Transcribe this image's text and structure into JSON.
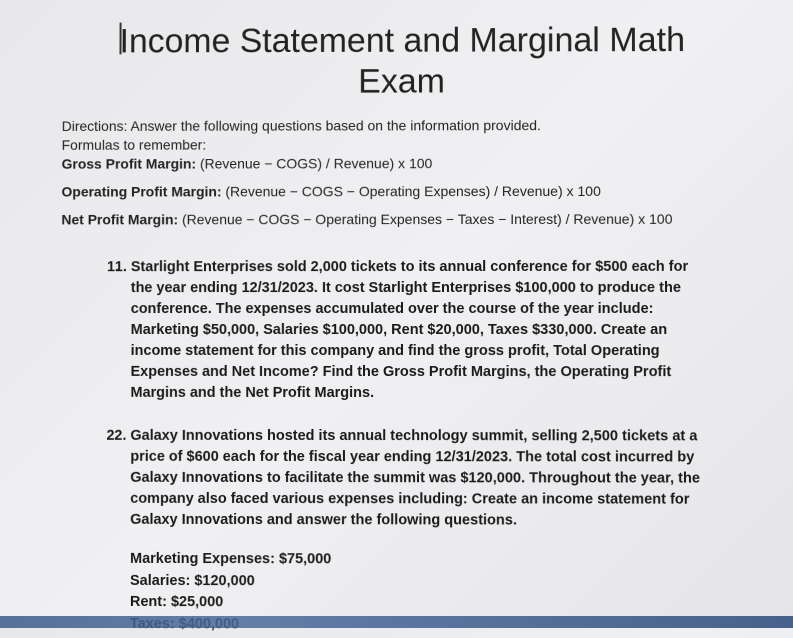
{
  "title_line1": "Income Statement and Marginal Math",
  "title_line2": "Exam",
  "directions": "Directions: Answer the following questions based on the information provided.",
  "formulas_label": "Formulas to remember:",
  "formula1_label": "Gross Profit Margin:",
  "formula1_text": "  (Revenue − COGS) / Revenue) x 100",
  "formula2_label": "Operating Profit Margin:",
  "formula2_text": " (Revenue − COGS − Operating Expenses) / Revenue) x 100",
  "formula3_label": "Net Profit Margin:",
  "formula3_text": " (Revenue − COGS − Operating Expenses − Taxes − Interest) / Revenue) x 100",
  "q1_num": "1.",
  "q1_text": "Starlight Enterprises sold 2,000 tickets to its annual conference for $500 each for the year ending 12/31/2023. It cost Starlight Enterprises $100,000 to produce the conference. The expenses accumulated over the course of the year include: Marketing $50,000, Salaries $100,000, Rent $20,000, Taxes $330,000. Create an income statement for this company and find the gross profit, Total Operating Expenses and Net Income? Find the Gross Profit Margins, the Operating Profit Margins and the Net Profit Margins.",
  "q2_num": "2.",
  "q2_text": "Galaxy Innovations hosted its annual technology summit, selling 2,500 tickets at a price of $600 each for the fiscal year ending 12/31/2023. The total cost incurred by Galaxy Innovations to facilitate the summit was $120,000. Throughout the year, the company also faced various expenses including: Create an income statement for Galaxy Innovations and answer the following questions.",
  "exp1": "Marketing Expenses: $75,000",
  "exp2": "Salaries: $120,000",
  "exp3": "Rent: $25,000",
  "exp4": "Taxes: $400,000"
}
